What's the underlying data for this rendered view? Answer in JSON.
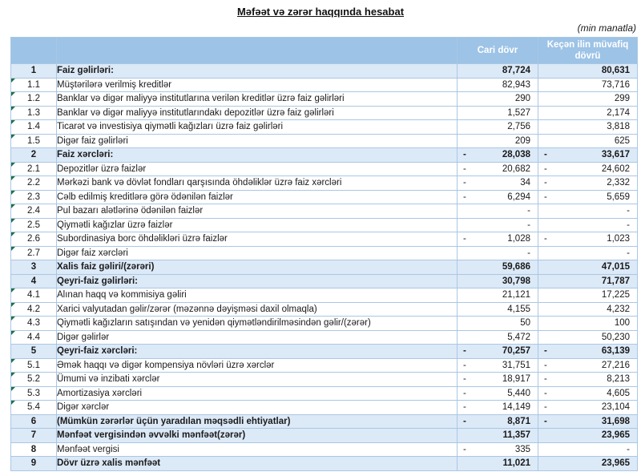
{
  "title": "Məfəət və zərər haqqında hesabat",
  "units_note": "(min manatla)",
  "colors": {
    "header_bg": "#9dc3e6",
    "header_text": "#ffffff",
    "highlight_row_bg": "#dce9f7",
    "grid_border": "#aac7e4",
    "comment_marker_green": "#1e7145"
  },
  "table": {
    "columns": {
      "number": "",
      "description": "",
      "current": "Cari dövr",
      "previous": "Keçən ilin müvafiq dövrü"
    },
    "rows": [
      {
        "num": "1",
        "label": "Faiz gəlirləri:",
        "sign1": "",
        "v1": "87,724",
        "sign2": "",
        "v2": "80,631",
        "bold": true,
        "highlight": true,
        "marker": false,
        "num_bold": true
      },
      {
        "num": "1.1",
        "label": "Müştərilərə verilmiş kreditlər",
        "sign1": "",
        "v1": "82,943",
        "sign2": "",
        "v2": "73,716",
        "bold": false,
        "highlight": false,
        "marker": true,
        "num_bold": false
      },
      {
        "num": "1.2",
        "label": "Banklar və digər maliyyə institutlarına verilən kreditlər üzrə faiz gəlirləri",
        "sign1": "",
        "v1": "290",
        "sign2": "",
        "v2": "299",
        "bold": false,
        "highlight": false,
        "marker": true,
        "num_bold": false
      },
      {
        "num": "1.3",
        "label": "Banklar və digər maliyyə institutlarındakı depozitlər üzrə faiz gəlirləri",
        "sign1": "",
        "v1": "1,527",
        "sign2": "",
        "v2": "2,174",
        "bold": false,
        "highlight": false,
        "marker": true,
        "num_bold": false
      },
      {
        "num": "1.4",
        "label": "Ticarət və investisiya qiymətli kağızları üzrə faiz gəlirləri",
        "sign1": "",
        "v1": "2,756",
        "sign2": "",
        "v2": "3,818",
        "bold": false,
        "highlight": false,
        "marker": true,
        "num_bold": false
      },
      {
        "num": "1.5",
        "label": "Digər faiz gəlirləri",
        "sign1": "",
        "v1": "209",
        "sign2": "",
        "v2": "625",
        "bold": false,
        "highlight": false,
        "marker": true,
        "num_bold": false
      },
      {
        "num": "2",
        "label": "Faiz xərcləri:",
        "sign1": "-",
        "v1": "28,038",
        "sign2": "-",
        "v2": "33,617",
        "bold": true,
        "highlight": true,
        "marker": false,
        "num_bold": true
      },
      {
        "num": "2.1",
        "label": "Depozitlər üzrə faizlər",
        "sign1": "-",
        "v1": "20,682",
        "sign2": "-",
        "v2": "24,602",
        "bold": false,
        "highlight": false,
        "marker": true,
        "num_bold": false
      },
      {
        "num": "2.2",
        "label": "Mərkəzi bank və dövlət fondları qarşısında öhdəliklər üzrə faiz xərcləri",
        "sign1": "-",
        "v1": "34",
        "sign2": "-",
        "v2": "2,332",
        "bold": false,
        "highlight": false,
        "marker": true,
        "num_bold": false
      },
      {
        "num": "2.3",
        "label": "Cəlb edilmiş kreditlərə görə ödənilən faizlər",
        "sign1": "-",
        "v1": "6,294",
        "sign2": "-",
        "v2": "5,659",
        "bold": false,
        "highlight": false,
        "marker": true,
        "num_bold": false
      },
      {
        "num": "2.4",
        "label": "Pul bazarı alətlərinə ödənilən faizlər",
        "sign1": "",
        "v1": "-",
        "sign2": "",
        "v2": "-",
        "bold": false,
        "highlight": false,
        "marker": true,
        "num_bold": false
      },
      {
        "num": "2.5",
        "label": "Qiymətli kağızlar üzrə faizlər",
        "sign1": "",
        "v1": "-",
        "sign2": "",
        "v2": "-",
        "bold": false,
        "highlight": false,
        "marker": true,
        "num_bold": false
      },
      {
        "num": "2.6",
        "label": "Subordinasiya borc öhdəlikləri üzrə faizlər",
        "sign1": "-",
        "v1": "1,028",
        "sign2": "-",
        "v2": "1,023",
        "bold": false,
        "highlight": false,
        "marker": true,
        "num_bold": false
      },
      {
        "num": "2.7",
        "label": "Digər faiz xərcləri",
        "sign1": "",
        "v1": "-",
        "sign2": "",
        "v2": "-",
        "bold": false,
        "highlight": false,
        "marker": true,
        "num_bold": false
      },
      {
        "num": "3",
        "label": "Xalis faiz gəliri/(zərəri)",
        "sign1": "",
        "v1": "59,686",
        "sign2": "",
        "v2": "47,015",
        "bold": true,
        "highlight": true,
        "marker": false,
        "num_bold": true
      },
      {
        "num": "4",
        "label": "Qeyri-faiz gəlirləri:",
        "sign1": "",
        "v1": "30,798",
        "sign2": "",
        "v2": "71,787",
        "bold": true,
        "highlight": true,
        "marker": false,
        "num_bold": true
      },
      {
        "num": "4.1",
        "label": "Alınan haqq və kommisiya gəliri",
        "sign1": "",
        "v1": "21,121",
        "sign2": "",
        "v2": "17,225",
        "bold": false,
        "highlight": false,
        "marker": true,
        "num_bold": false
      },
      {
        "num": "4.2",
        "label": "Xarici valyutadan gəlir/zərər (məzənnə dəyişməsi daxil olmaqla)",
        "sign1": "",
        "v1": "4,155",
        "sign2": "",
        "v2": "4,232",
        "bold": false,
        "highlight": false,
        "marker": true,
        "num_bold": false
      },
      {
        "num": "4.3",
        "label": "Qiymətli kağızların satışından və yenidən qiymətləndirilməsindən gəlir/(zərər)",
        "sign1": "",
        "v1": "50",
        "sign2": "",
        "v2": "100",
        "bold": false,
        "highlight": false,
        "marker": true,
        "num_bold": false
      },
      {
        "num": "4.4",
        "label": "Digər gəlirlər",
        "sign1": "",
        "v1": "5,472",
        "sign2": "",
        "v2": "50,230",
        "bold": false,
        "highlight": false,
        "marker": true,
        "num_bold": false
      },
      {
        "num": "5",
        "label": "Qeyri-faiz xərcləri:",
        "sign1": "-",
        "v1": "70,257",
        "sign2": "-",
        "v2": "63,139",
        "bold": true,
        "highlight": true,
        "marker": false,
        "num_bold": true
      },
      {
        "num": "5.1",
        "label": "Əmək haqqı və digər kompensiya növləri üzrə xərclər",
        "sign1": "-",
        "v1": "31,751",
        "sign2": "-",
        "v2": "27,216",
        "bold": false,
        "highlight": false,
        "marker": true,
        "num_bold": false
      },
      {
        "num": "5.2",
        "label": "Ümumi və inzibati xərclər",
        "sign1": "-",
        "v1": "18,917",
        "sign2": "-",
        "v2": "8,213",
        "bold": false,
        "highlight": false,
        "marker": true,
        "num_bold": false
      },
      {
        "num": "5.3",
        "label": "Amortizasiya xərcləri",
        "sign1": "-",
        "v1": "5,440",
        "sign2": "-",
        "v2": "4,605",
        "bold": false,
        "highlight": false,
        "marker": true,
        "num_bold": false
      },
      {
        "num": "5.4",
        "label": "Digər xərclər",
        "sign1": "-",
        "v1": "14,149",
        "sign2": "-",
        "v2": "23,104",
        "bold": false,
        "highlight": false,
        "marker": true,
        "num_bold": false
      },
      {
        "num": "6",
        "label": "(Mümkün zərərlər üçün yaradılan məqsədli ehtiyatlar)",
        "sign1": "-",
        "v1": "8,871",
        "sign2": "-",
        "v2": "31,698",
        "bold": true,
        "highlight": true,
        "marker": false,
        "num_bold": true
      },
      {
        "num": "7",
        "label": "Mənfəət vergisindən əvvəlki mənfəət(zərər)",
        "sign1": "",
        "v1": "11,357",
        "sign2": "",
        "v2": "23,965",
        "bold": true,
        "highlight": true,
        "marker": false,
        "num_bold": true
      },
      {
        "num": "8",
        "label": "Mənfəət vergisi",
        "sign1": "-",
        "v1": "335",
        "sign2": "",
        "v2": "-",
        "bold": false,
        "highlight": false,
        "marker": false,
        "num_bold": true
      },
      {
        "num": "9",
        "label": "Dövr üzrə xalis mənfəət",
        "sign1": "",
        "v1": "11,021",
        "sign2": "",
        "v2": "23,965",
        "bold": true,
        "highlight": true,
        "marker": false,
        "num_bold": true
      }
    ]
  }
}
